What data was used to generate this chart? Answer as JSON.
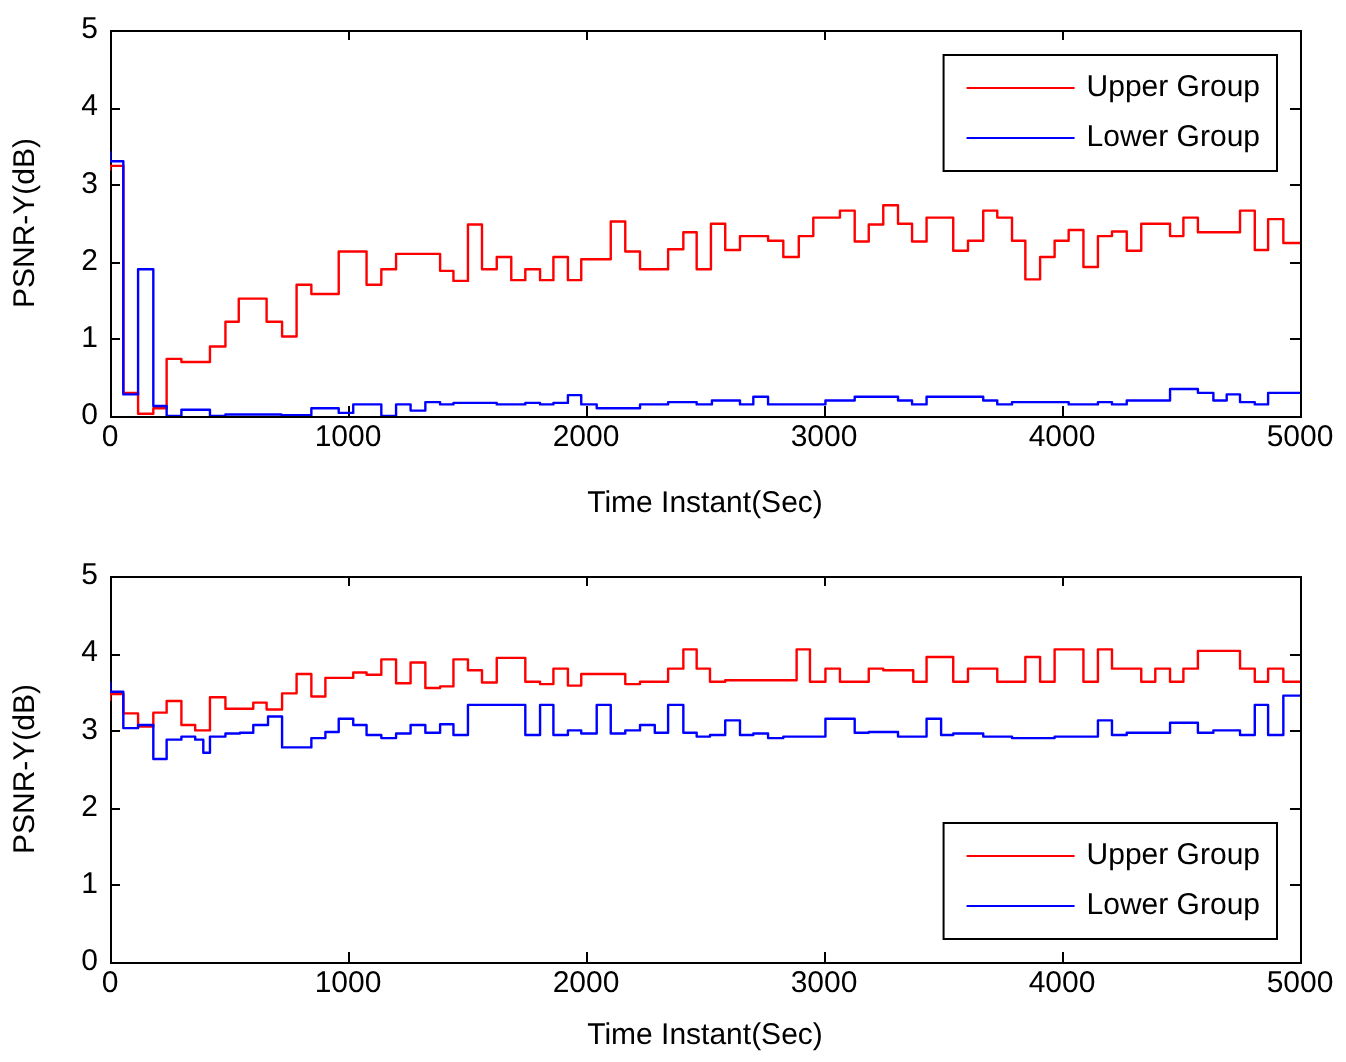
{
  "chart_data": [
    {
      "type": "step",
      "xlabel": "Time Instant(Sec)",
      "ylabel": "PSNR-Y(dB)",
      "xlim": [
        0,
        5000
      ],
      "ylim": [
        0,
        5
      ],
      "xticks": [
        0,
        1000,
        2000,
        3000,
        4000,
        5000
      ],
      "yticks": [
        0,
        1,
        2,
        3,
        4,
        5
      ],
      "grid": false,
      "legend": "top right",
      "series": [
        {
          "name": "Upper Group",
          "color": "#ff0000",
          "x": [
            0,
            56,
            118,
            182,
            238,
            300,
            420,
            485,
            541,
            658,
            723,
            784,
            846,
            961,
            1078,
            1140,
            1202,
            1387,
            1443,
            1504,
            1563,
            1625,
            1686,
            1745,
            1807,
            1863,
            1924,
            1980,
            2104,
            2165,
            2227,
            2345,
            2409,
            2465,
            2525,
            2585,
            2647,
            2765,
            2829,
            2894,
            2955,
            3067,
            3129,
            3188,
            3249,
            3311,
            3370,
            3431,
            3543,
            3605,
            3669,
            3728,
            3790,
            3846,
            3908,
            3969,
            4028,
            4090,
            4151,
            4210,
            4272,
            4333,
            4454,
            4510,
            4571,
            4748,
            4810,
            4866,
            4930,
            4986,
            5000
          ],
          "values": [
            3.18,
            3.24,
            0.3,
            0.03,
            0.1,
            0.74,
            0.7,
            0.9,
            1.22,
            1.52,
            1.22,
            1.03,
            1.7,
            1.58,
            2.13,
            1.7,
            1.9,
            2.1,
            1.88,
            1.75,
            2.48,
            1.9,
            2.06,
            1.76,
            1.9,
            1.76,
            2.06,
            1.76,
            2.03,
            2.52,
            2.13,
            1.9,
            2.16,
            2.38,
            1.9,
            2.49,
            2.15,
            2.33,
            2.27,
            2.06,
            2.33,
            2.57,
            2.66,
            2.26,
            2.48,
            2.73,
            2.49,
            2.26,
            2.57,
            2.14,
            2.27,
            2.66,
            2.57,
            2.27,
            1.77,
            2.06,
            2.27,
            2.41,
            1.93,
            2.33,
            2.39,
            2.14,
            2.49,
            2.33,
            2.57,
            2.38,
            2.66,
            2.15,
            2.55,
            2.24,
            2.24
          ]
        },
        {
          "name": "Lower Group",
          "color": "#0000ff",
          "x": [
            0,
            56,
            118,
            182,
            238,
            300,
            420,
            485,
            720,
            846,
            961,
            1022,
            1140,
            1202,
            1263,
            1325,
            1387,
            1443,
            1625,
            1745,
            1807,
            1863,
            1924,
            1980,
            2045,
            2227,
            2345,
            2465,
            2529,
            2647,
            2703,
            2765,
            2829,
            3006,
            3129,
            3311,
            3370,
            3431,
            3669,
            3728,
            3790,
            4028,
            4151,
            4210,
            4272,
            4454,
            4571,
            4636,
            4692,
            4748,
            4810,
            4866,
            4972,
            5000
          ],
          "values": [
            3.43,
            3.3,
            0.28,
            1.9,
            0.13,
            0,
            0.08,
            0,
            0.02,
            0.01,
            0.1,
            0.04,
            0.15,
            0,
            0.15,
            0.07,
            0.18,
            0.15,
            0.17,
            0.15,
            0.17,
            0.15,
            0.17,
            0.27,
            0.15,
            0.1,
            0.15,
            0.18,
            0.15,
            0.2,
            0.15,
            0.25,
            0.15,
            0.15,
            0.2,
            0.25,
            0.2,
            0.15,
            0.25,
            0.2,
            0.15,
            0.18,
            0.15,
            0.18,
            0.15,
            0.2,
            0.35,
            0.3,
            0.2,
            0.28,
            0.18,
            0.15,
            0.3,
            0.3
          ]
        }
      ]
    },
    {
      "type": "step",
      "xlabel": "Time Instant(Sec)",
      "ylabel": "PSNR-Y(dB)",
      "xlim": [
        0,
        5000
      ],
      "ylim": [
        0,
        5
      ],
      "xticks": [
        0,
        1000,
        2000,
        3000,
        4000,
        5000
      ],
      "yticks": [
        0,
        1,
        2,
        3,
        4,
        5
      ],
      "grid": false,
      "legend": "bottom right",
      "series": [
        {
          "name": "Upper Group",
          "color": "#ff0000",
          "x": [
            0,
            56,
            118,
            182,
            238,
            300,
            358,
            420,
            485,
            602,
            658,
            723,
            784,
            846,
            905,
            1022,
            1078,
            1140,
            1202,
            1263,
            1325,
            1387,
            1443,
            1504,
            1563,
            1625,
            1745,
            1807,
            1863,
            1924,
            1980,
            2165,
            2227,
            2345,
            2409,
            2465,
            2521,
            2585,
            2885,
            2941,
            3006,
            3067,
            3188,
            3249,
            3375,
            3431,
            3543,
            3605,
            3728,
            3846,
            3908,
            3969,
            4090,
            4151,
            4210,
            4333,
            4392,
            4454,
            4510,
            4571,
            4748,
            4810,
            4866,
            4930,
            4986,
            5000
          ],
          "values": [
            3.38,
            3.47,
            3.22,
            3.05,
            3.23,
            3.38,
            3.07,
            3.0,
            3.43,
            3.28,
            3.36,
            3.27,
            3.48,
            3.73,
            3.44,
            3.68,
            3.75,
            3.72,
            3.92,
            3.61,
            3.88,
            3.55,
            3.57,
            3.92,
            3.78,
            3.62,
            3.94,
            3.63,
            3.6,
            3.8,
            3.58,
            3.73,
            3.6,
            3.63,
            3.8,
            4.05,
            3.8,
            3.63,
            3.65,
            4.05,
            3.63,
            3.8,
            3.63,
            3.8,
            3.78,
            3.63,
            3.95,
            3.63,
            3.8,
            3.63,
            3.95,
            3.63,
            4.05,
            3.63,
            4.05,
            3.8,
            3.63,
            3.8,
            3.63,
            3.8,
            4.03,
            3.8,
            3.63,
            3.8,
            3.63,
            3.63
          ]
        },
        {
          "name": "Lower Group",
          "color": "#0000ff",
          "x": [
            0,
            56,
            118,
            182,
            238,
            300,
            358,
            392,
            420,
            485,
            546,
            602,
            664,
            723,
            846,
            905,
            961,
            1022,
            1078,
            1140,
            1202,
            1263,
            1325,
            1387,
            1443,
            1504,
            1745,
            1807,
            1863,
            1924,
            1980,
            2045,
            2104,
            2165,
            2227,
            2289,
            2345,
            2409,
            2465,
            2521,
            2585,
            2647,
            2703,
            2765,
            2829,
            3006,
            3129,
            3188,
            3311,
            3431,
            3492,
            3543,
            3669,
            3790,
            3969,
            4151,
            4210,
            4272,
            4454,
            4571,
            4636,
            4748,
            4810,
            4866,
            4930,
            4986,
            5000
          ],
          "values": [
            3.63,
            3.5,
            3.03,
            3.07,
            2.63,
            2.88,
            2.92,
            2.88,
            2.71,
            2.92,
            2.96,
            2.97,
            3.07,
            3.18,
            2.78,
            2.9,
            2.98,
            3.15,
            3.07,
            2.94,
            2.9,
            2.96,
            3.07,
            2.97,
            3.08,
            2.94,
            3.33,
            2.94,
            3.33,
            2.94,
            3.0,
            2.96,
            3.33,
            2.96,
            3.0,
            3.07,
            2.97,
            3.33,
            2.97,
            2.92,
            2.94,
            3.13,
            2.94,
            2.96,
            2.9,
            2.92,
            3.15,
            2.97,
            2.98,
            2.92,
            3.15,
            2.94,
            2.96,
            2.92,
            2.9,
            2.92,
            3.13,
            2.94,
            2.97,
            3.1,
            2.97,
            3.0,
            2.94,
            3.33,
            2.94,
            3.45,
            3.45
          ]
        }
      ]
    }
  ]
}
